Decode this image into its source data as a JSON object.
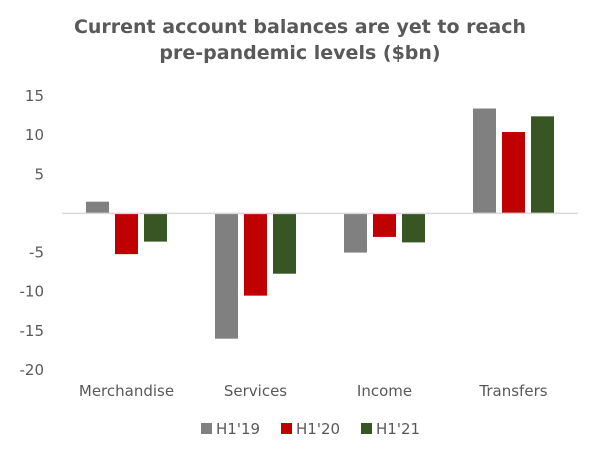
{
  "chart_data": {
    "type": "bar",
    "title_lines": [
      "Current account balances are yet to reach",
      "pre-pandemic levels ($bn)"
    ],
    "xlabel": "",
    "ylabel": "",
    "categories": [
      "Merchandise",
      "Services",
      "Income",
      "Transfers"
    ],
    "ylim": [
      -20,
      15
    ],
    "yticks": [
      15,
      10,
      5,
      -5,
      -10,
      -15,
      -20
    ],
    "grid": false,
    "legend_position": "bottom",
    "series": [
      {
        "name": "H1'19",
        "color": "#808080",
        "values": [
          1.5,
          -16.0,
          -5.0,
          13.4
        ]
      },
      {
        "name": "H1'20",
        "color": "#c00000",
        "values": [
          -5.2,
          -10.5,
          -3.0,
          10.4
        ]
      },
      {
        "name": "H1'21",
        "color": "#375623",
        "values": [
          -3.6,
          -7.7,
          -3.7,
          12.4
        ]
      }
    ]
  }
}
